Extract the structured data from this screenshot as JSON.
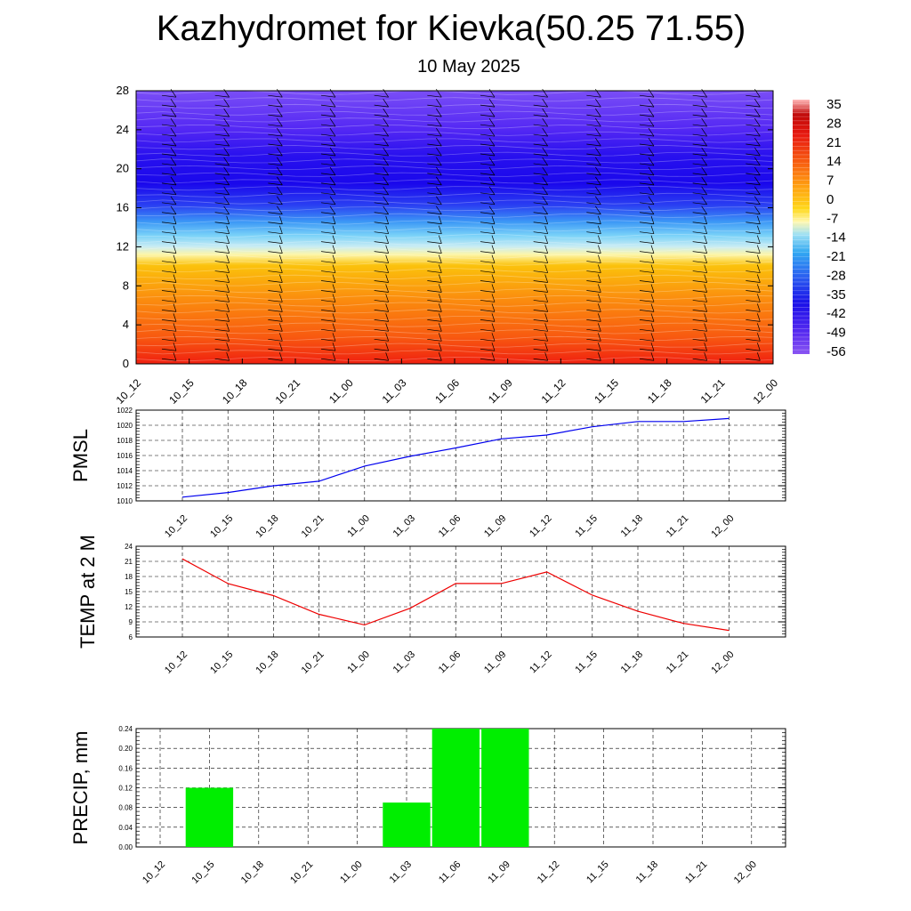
{
  "header": {
    "title": "Kazhydromet for Kievka(50.25 71.55)",
    "subtitle": "10 May 2025"
  },
  "time_labels": [
    "10_12",
    "10_15",
    "10_18",
    "10_21",
    "11_00",
    "11_03",
    "11_06",
    "11_09",
    "11_12",
    "11_15",
    "11_18",
    "11_21",
    "12_00"
  ],
  "colors": {
    "pmsl_line": "#0000ee",
    "temp_line": "#ee0000",
    "precip_bar": "#00ee00",
    "grid": "#000000"
  },
  "chart_data": [
    {
      "type": "heatmap",
      "title": "",
      "xlabel": "",
      "ylabel": "",
      "x": [
        "10_12",
        "10_15",
        "10_18",
        "10_21",
        "11_00",
        "11_03",
        "11_06",
        "11_09",
        "11_12",
        "11_15",
        "11_18",
        "11_21",
        "12_00"
      ],
      "y_ticks": [
        0,
        4,
        8,
        12,
        16,
        20,
        24,
        28
      ],
      "ylim": [
        0,
        28
      ],
      "colorbar_labels": [
        "35",
        "28",
        "21",
        "14",
        "7",
        "0",
        "-7",
        "-14",
        "-21",
        "-28",
        "-35",
        "-42",
        "-49",
        "-56"
      ],
      "colorbar_range": [
        -63,
        42
      ],
      "overlay": "wind barbs",
      "profile_note": "warm (orange/red) below ~12, sharp transition to cold (blue) above, coldest near 20-22"
    },
    {
      "type": "line",
      "ylabel": "PMSL",
      "x": [
        "10_12",
        "10_15",
        "10_18",
        "10_21",
        "11_00",
        "11_03",
        "11_06",
        "11_09",
        "11_12",
        "11_15",
        "11_18",
        "11_21",
        "12_00"
      ],
      "values": [
        1010.5,
        1011.1,
        1012.0,
        1012.6,
        1014.6,
        1015.9,
        1017.0,
        1018.2,
        1018.7,
        1019.8,
        1020.5,
        1020.5,
        1020.9
      ],
      "ylim": [
        1010,
        1022
      ],
      "y_ticks": [
        1010,
        1012,
        1014,
        1016,
        1018,
        1020,
        1022
      ]
    },
    {
      "type": "line",
      "ylabel": "TEMP at 2 M",
      "x": [
        "10_12",
        "10_15",
        "10_18",
        "10_21",
        "11_00",
        "11_03",
        "11_06",
        "11_09",
        "11_12",
        "11_15",
        "11_18",
        "11_21",
        "12_00"
      ],
      "values": [
        21.5,
        16.6,
        14.2,
        10.5,
        8.4,
        11.7,
        16.6,
        16.6,
        18.9,
        14.3,
        11.1,
        8.7,
        7.3
      ],
      "ylim": [
        6,
        24
      ],
      "y_ticks": [
        6,
        9,
        12,
        15,
        18,
        21,
        24
      ]
    },
    {
      "type": "bar",
      "ylabel": "PRECIP, mm",
      "categories": [
        "10_12",
        "10_15",
        "10_18",
        "10_21",
        "11_00",
        "11_03",
        "11_06",
        "11_09",
        "11_12",
        "11_15",
        "11_18",
        "11_21",
        "12_00"
      ],
      "values": [
        0,
        0.12,
        0,
        0,
        0,
        0.09,
        0.24,
        0.24,
        0,
        0,
        0,
        0,
        0
      ],
      "ylim": [
        0,
        0.24
      ],
      "y_ticks": [
        "0.00",
        "0.04",
        "0.08",
        "0.12",
        "0.16",
        "0.20",
        "0.24"
      ]
    }
  ]
}
